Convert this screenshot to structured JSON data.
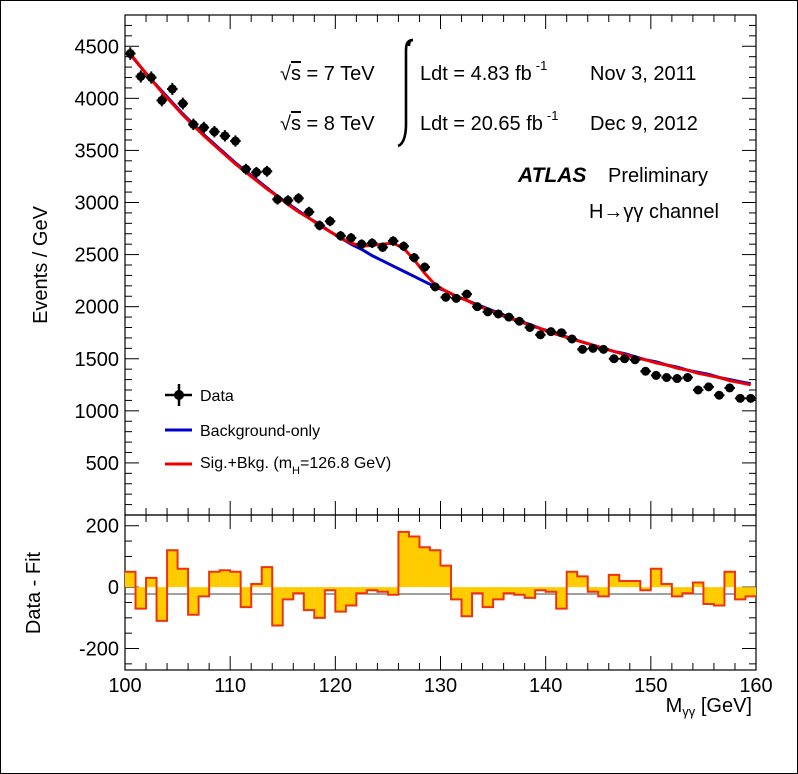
{
  "chart_data": [
    {
      "type": "scatter",
      "name": "main-panel",
      "ylabel": "Events / GeV",
      "xlim": [
        100,
        160
      ],
      "ylim": [
        0,
        4800
      ],
      "yticks": [
        500,
        1000,
        1500,
        2000,
        2500,
        3000,
        3500,
        4000,
        4500
      ],
      "x": [
        100.5,
        101.5,
        102.5,
        103.5,
        104.5,
        105.5,
        106.5,
        107.5,
        108.5,
        109.5,
        110.5,
        111.5,
        112.5,
        113.5,
        114.5,
        115.5,
        116.5,
        117.5,
        118.5,
        119.5,
        120.5,
        121.5,
        122.5,
        123.5,
        124.5,
        125.5,
        126.5,
        127.5,
        128.5,
        129.5,
        130.5,
        131.5,
        132.5,
        133.5,
        134.5,
        135.5,
        136.5,
        137.5,
        138.5,
        139.5,
        140.5,
        141.5,
        142.5,
        143.5,
        144.5,
        145.5,
        146.5,
        147.5,
        148.5,
        149.5,
        150.5,
        151.5,
        152.5,
        153.5,
        154.5,
        155.5,
        156.5,
        157.5,
        158.5,
        159.5
      ],
      "series": [
        {
          "name": "Data",
          "color": "#000000",
          "values": [
            4430,
            4210,
            4200,
            3980,
            4090,
            3950,
            3750,
            3720,
            3680,
            3640,
            3590,
            3320,
            3290,
            3300,
            3030,
            3020,
            3040,
            2910,
            2780,
            2820,
            2680,
            2660,
            2600,
            2610,
            2570,
            2630,
            2580,
            2470,
            2380,
            2190,
            2090,
            2080,
            2120,
            2000,
            1950,
            1930,
            1900,
            1860,
            1800,
            1730,
            1760,
            1750,
            1690,
            1590,
            1600,
            1590,
            1500,
            1500,
            1490,
            1380,
            1340,
            1320,
            1310,
            1320,
            1200,
            1230,
            1150,
            1220,
            1120,
            1120
          ]
        },
        {
          "name": "Background-only",
          "color": "#0000cc",
          "values": [
            4420,
            4300,
            4180,
            4070,
            3960,
            3850,
            3750,
            3650,
            3560,
            3470,
            3380,
            3300,
            3220,
            3140,
            3060,
            2990,
            2920,
            2850,
            2790,
            2720,
            2660,
            2600,
            2550,
            2490,
            2440,
            2390,
            2340,
            2290,
            2240,
            2190,
            2150,
            2100,
            2060,
            2020,
            1980,
            1940,
            1900,
            1860,
            1830,
            1790,
            1760,
            1730,
            1690,
            1660,
            1630,
            1600,
            1570,
            1550,
            1520,
            1490,
            1470,
            1440,
            1420,
            1390,
            1370,
            1350,
            1320,
            1300,
            1280,
            1260
          ]
        },
        {
          "name": "Sig.+Bkg. (mH=126.8 GeV)",
          "color": "#ee0000",
          "values": [
            4430,
            4300,
            4180,
            4060,
            3950,
            3840,
            3740,
            3640,
            3550,
            3460,
            3370,
            3290,
            3210,
            3130,
            3060,
            2980,
            2910,
            2850,
            2780,
            2720,
            2660,
            2610,
            2580,
            2590,
            2600,
            2610,
            2560,
            2450,
            2320,
            2210,
            2150,
            2100,
            2060,
            2010,
            1970,
            1930,
            1890,
            1860,
            1820,
            1790,
            1750,
            1720,
            1690,
            1660,
            1630,
            1600,
            1570,
            1540,
            1510,
            1490,
            1460,
            1440,
            1410,
            1390,
            1360,
            1340,
            1320,
            1290,
            1270,
            1250
          ]
        }
      ],
      "legend": [
        "Data",
        "Background-only",
        "Sig.+Bkg. (m",
        "H",
        "=126.8 GeV)"
      ],
      "annotations": {
        "sqrt_symbol": "√",
        "s_symbol": "s",
        "energy_7": " = 7 TeV",
        "energy_8": " = 8 TeV",
        "ldt_7": "Ldt = 4.83 fb",
        "ldt_8": "Ldt = 20.65 fb",
        "inverse": "-1",
        "date_7": "Nov  3, 2011",
        "date_8": "Dec  9, 2012",
        "atlas": "ATLAS",
        "preliminary": "Preliminary",
        "channel": "H→γγ channel"
      }
    },
    {
      "type": "bar",
      "name": "residual-panel",
      "ylabel": "Data - Fit",
      "xlabel": "M",
      "xlabel_sub": "γγ",
      "xlabel_unit": " [GeV]",
      "xlim": [
        100,
        160
      ],
      "ylim": [
        -270,
        235
      ],
      "yticks": [
        -200,
        0,
        200
      ],
      "xticks": [
        100,
        110,
        120,
        130,
        140,
        150,
        160
      ],
      "fill_color": "#ffcc00",
      "line_color": "#ee3311",
      "values": [
        50,
        -70,
        30,
        -110,
        120,
        60,
        -90,
        -30,
        50,
        55,
        50,
        -65,
        10,
        65,
        -125,
        -40,
        -20,
        -75,
        -100,
        -10,
        -80,
        -60,
        -20,
        -10,
        -15,
        -25,
        180,
        165,
        130,
        120,
        70,
        -40,
        -95,
        -20,
        -65,
        -40,
        -20,
        -25,
        -35,
        -10,
        -15,
        -70,
        50,
        35,
        -15,
        -30,
        40,
        20,
        20,
        -10,
        60,
        10,
        -30,
        -20,
        15,
        -55,
        -60,
        50,
        -40,
        -30
      ]
    }
  ]
}
